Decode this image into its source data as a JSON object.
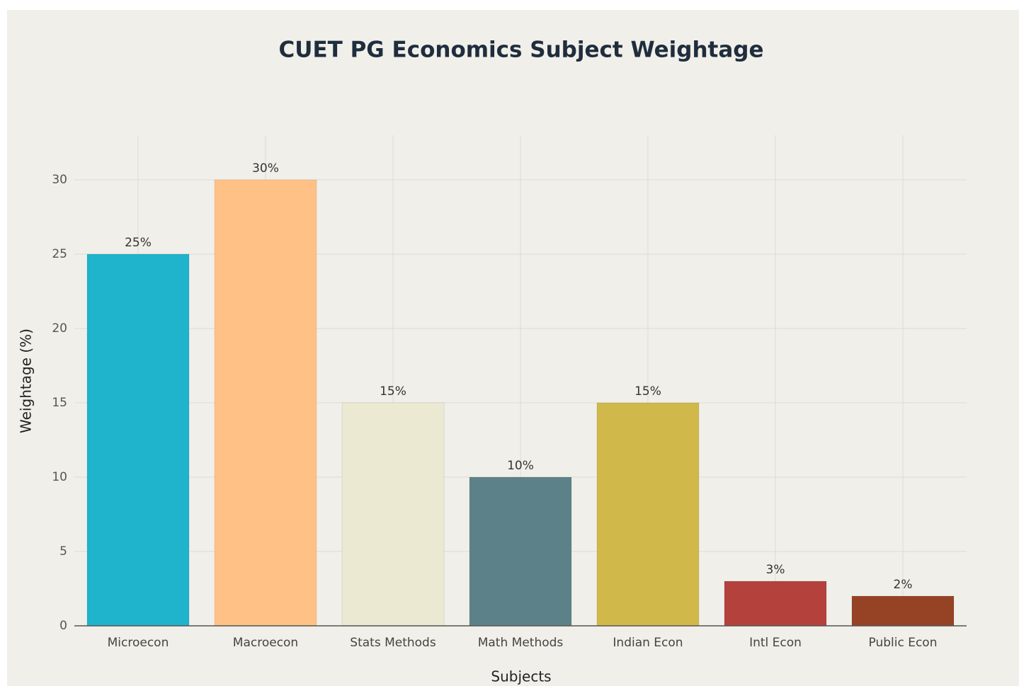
{
  "chart_data": {
    "type": "bar",
    "title": "CUET PG Economics Subject Weightage",
    "x_label": "Subjects",
    "y_label": "Weightage (%)",
    "categories": [
      "Microecon",
      "Macroecon",
      "Stats Methods",
      "Math Methods",
      "Indian Econ",
      "Intl Econ",
      "Public Econ"
    ],
    "values": [
      25,
      30,
      15,
      10,
      15,
      3,
      2
    ],
    "value_labels": [
      "25%",
      "30%",
      "15%",
      "10%",
      "15%",
      "3%",
      "2%"
    ],
    "colors": [
      "#1fb3cc",
      "#ffc185",
      "#ece9d2",
      "#5d8189",
      "#d1b84a",
      "#b4413c",
      "#964325"
    ],
    "ylim": [
      0,
      33
    ],
    "yticks": [
      0,
      5,
      10,
      15,
      20,
      25,
      30
    ],
    "grid": true
  }
}
